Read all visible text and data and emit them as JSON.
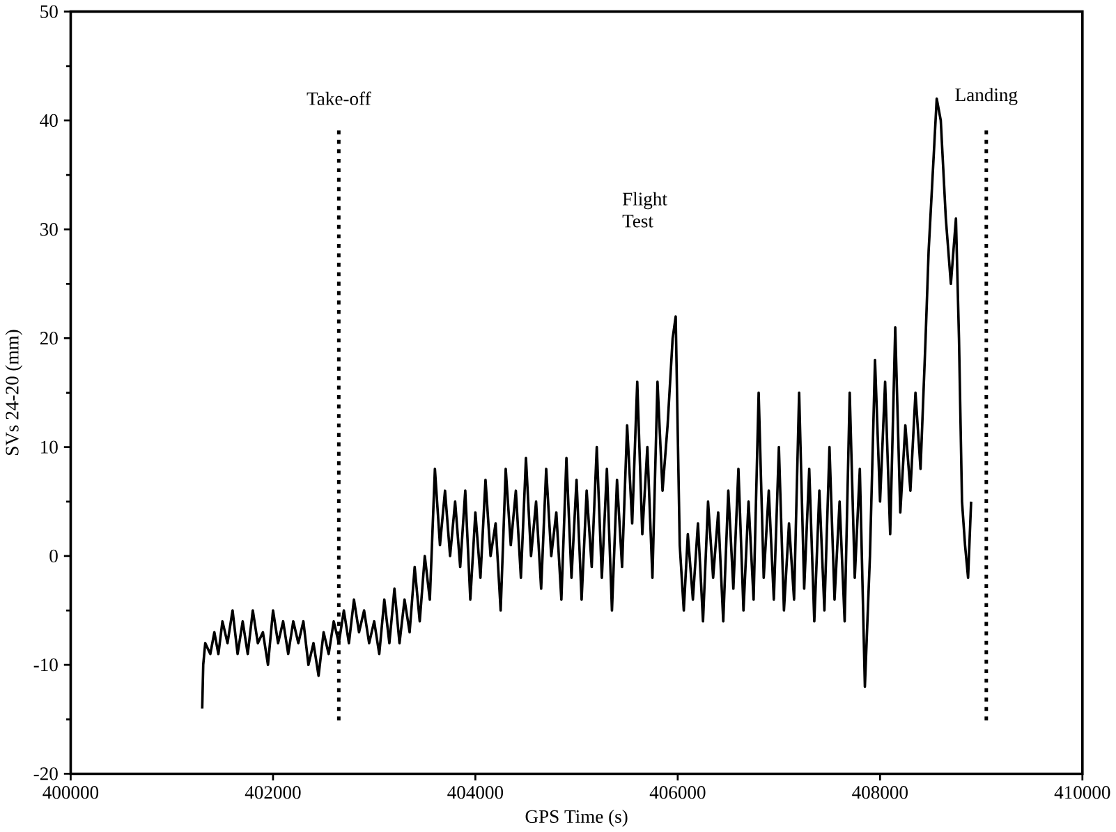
{
  "chart_data": {
    "type": "line",
    "xlabel": "GPS Time (s)",
    "ylabel": "SVs 24-20 (mm)",
    "xlim": [
      400000,
      410000
    ],
    "ylim": [
      -20,
      50
    ],
    "xticks": [
      400000,
      402000,
      404000,
      406000,
      408000,
      410000
    ],
    "yticks": [
      -20,
      -10,
      0,
      10,
      20,
      30,
      40,
      50
    ],
    "grid": false,
    "marker": "none",
    "line_style": "solid",
    "ref_lines": [
      {
        "axis": "x",
        "value": 402650,
        "label": "Take-off",
        "line_style": "dotted"
      },
      {
        "axis": "x",
        "value": 409050,
        "label": "Landing",
        "line_style": "dotted"
      }
    ],
    "annotations": [
      "Flight Test"
    ],
    "series": [
      {
        "color": "#000000",
        "x": [
          401300,
          401310,
          401330,
          401380,
          401420,
          401460,
          401500,
          401550,
          401600,
          401650,
          401700,
          401750,
          401800,
          401850,
          401900,
          401950,
          402000,
          402050,
          402100,
          402150,
          402200,
          402250,
          402300,
          402350,
          402400,
          402450,
          402500,
          402550,
          402600,
          402650,
          402700,
          402750,
          402800,
          402850,
          402900,
          402950,
          403000,
          403050,
          403100,
          403150,
          403200,
          403250,
          403300,
          403350,
          403400,
          403450,
          403500,
          403550,
          403600,
          403650,
          403700,
          403750,
          403800,
          403850,
          403900,
          403950,
          404000,
          404050,
          404100,
          404150,
          404200,
          404250,
          404300,
          404350,
          404400,
          404450,
          404500,
          404550,
          404600,
          404650,
          404700,
          404750,
          404800,
          404850,
          404900,
          404950,
          405000,
          405050,
          405100,
          405150,
          405200,
          405250,
          405300,
          405350,
          405400,
          405450,
          405500,
          405550,
          405600,
          405650,
          405700,
          405750,
          405800,
          405850,
          405900,
          405950,
          405980,
          406020,
          406060,
          406100,
          406150,
          406200,
          406250,
          406300,
          406350,
          406400,
          406450,
          406500,
          406550,
          406600,
          406650,
          406700,
          406750,
          406800,
          406850,
          406900,
          406950,
          407000,
          407050,
          407100,
          407150,
          407200,
          407250,
          407300,
          407350,
          407400,
          407450,
          407500,
          407550,
          407600,
          407650,
          407700,
          407750,
          407800,
          407850,
          407900,
          407950,
          408000,
          408050,
          408100,
          408150,
          408200,
          408250,
          408300,
          408350,
          408400,
          408450,
          408480,
          408520,
          408560,
          408600,
          408650,
          408700,
          408750,
          408780,
          408810,
          408840,
          408870,
          408900
        ],
        "values": [
          -14,
          -10,
          -8,
          -9,
          -7,
          -9,
          -6,
          -8,
          -5,
          -9,
          -6,
          -9,
          -5,
          -8,
          -7,
          -10,
          -5,
          -8,
          -6,
          -9,
          -6,
          -8,
          -6,
          -10,
          -8,
          -11,
          -7,
          -9,
          -6,
          -8,
          -5,
          -8,
          -4,
          -7,
          -5,
          -8,
          -6,
          -9,
          -4,
          -8,
          -3,
          -8,
          -4,
          -7,
          -1,
          -6,
          0,
          -4,
          8,
          1,
          6,
          0,
          5,
          -1,
          6,
          -4,
          4,
          -2,
          7,
          0,
          3,
          -5,
          8,
          1,
          6,
          -2,
          9,
          0,
          5,
          -3,
          8,
          0,
          4,
          -4,
          9,
          -2,
          7,
          -4,
          6,
          -1,
          10,
          -2,
          8,
          -5,
          7,
          -1,
          12,
          3,
          16,
          2,
          10,
          -2,
          16,
          6,
          12,
          20,
          22,
          1,
          -5,
          2,
          -4,
          3,
          -6,
          5,
          -2,
          4,
          -6,
          6,
          -3,
          8,
          -5,
          5,
          -4,
          15,
          -2,
          6,
          -4,
          10,
          -5,
          3,
          -4,
          15,
          -3,
          8,
          -6,
          6,
          -5,
          10,
          -4,
          5,
          -6,
          15,
          -2,
          8,
          -12,
          0,
          18,
          5,
          16,
          2,
          21,
          4,
          12,
          6,
          15,
          8,
          20,
          28,
          35,
          42,
          40,
          31,
          25,
          31,
          20,
          5,
          1,
          -2,
          5
        ]
      }
    ]
  }
}
